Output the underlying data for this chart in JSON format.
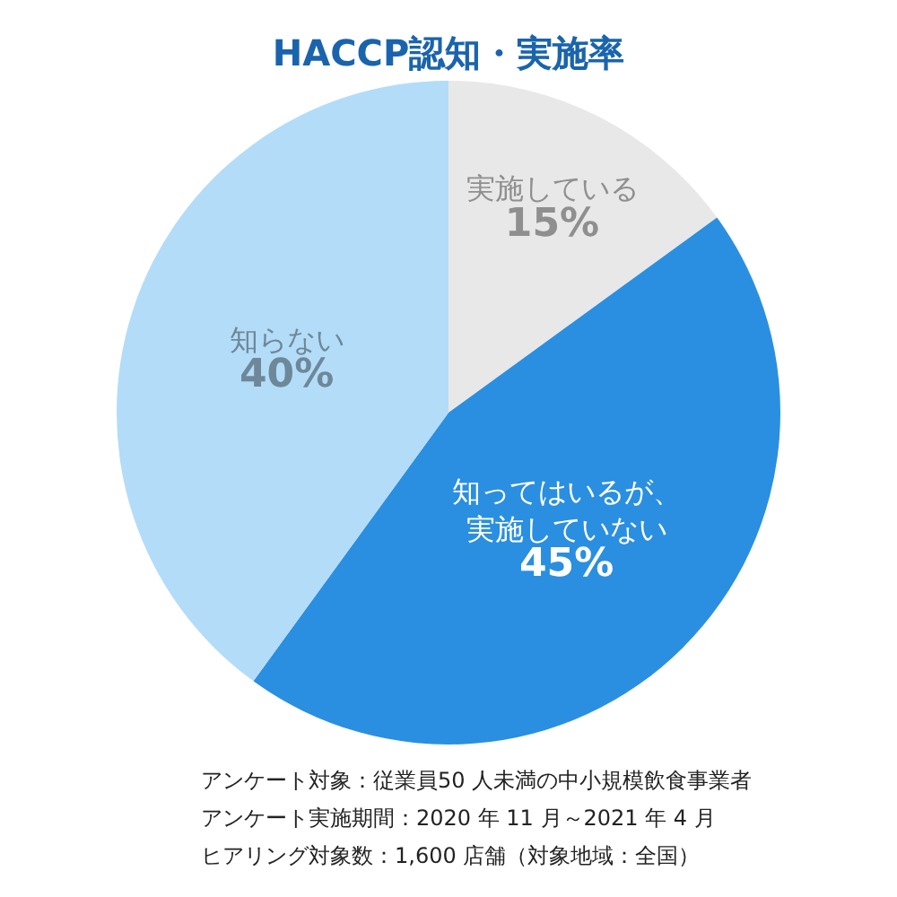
{
  "chart_data": {
    "type": "pie",
    "title": "HACCP認知・実施率",
    "categories": [
      "実施している",
      "知ってはいるが、実施していない",
      "知らない"
    ],
    "values": [
      15,
      45,
      40
    ],
    "value_labels": [
      "15%",
      "45%",
      "40%"
    ],
    "colors": [
      "#e8e8e8",
      "#2a8fe0",
      "#b3dcf8"
    ],
    "legend": false,
    "annotations": [
      "アンケート対象：従業員50 人未満の中小規模飲食事業者",
      "アンケート実施期間：2020 年 11 月～2021 年 4 月",
      "ヒアリング対象数：1,600 店舗（対象地域：全国）"
    ]
  }
}
